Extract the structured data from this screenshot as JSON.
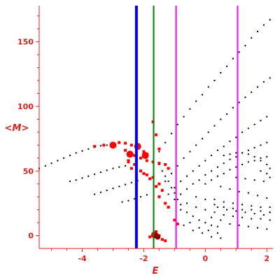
{
  "chart_data": {
    "type": "scatter",
    "xlabel": "E",
    "ylabel": "<M>",
    "xlim": [
      -5.4,
      2.2
    ],
    "ylim": [
      -10,
      178
    ],
    "xticks": [
      -4,
      -2,
      0,
      2
    ],
    "yticks": [
      0,
      50,
      100,
      150
    ],
    "grid": false,
    "legend": "none",
    "colors": {
      "axis": "#e0201a",
      "points": "#000000",
      "highlight": "#ff0000",
      "highlight_dark": "#8b0000",
      "blue_line": "#0000ff",
      "green_line": "#008000",
      "magenta_line": "#ff00ff"
    },
    "vertical_lines": [
      {
        "x": -2.24,
        "color": "#0000ff"
      },
      {
        "x": -1.68,
        "color": "#008000"
      },
      {
        "x": -0.95,
        "color": "#ff00ff"
      },
      {
        "x": 1.05,
        "color": "#ff00ff"
      }
    ],
    "series": [
      {
        "values": [
          [
            -5.4,
            52
          ],
          [
            -5.2,
            54
          ],
          [
            -5.0,
            56
          ],
          [
            -4.8,
            58
          ],
          [
            -4.6,
            60
          ],
          [
            -4.4,
            62
          ],
          [
            -4.2,
            64
          ],
          [
            -4.0,
            65.5
          ],
          [
            -3.8,
            67
          ],
          [
            -3.6,
            68.5
          ],
          [
            -3.4,
            69.5
          ],
          [
            -3.2,
            70
          ],
          [
            -4.4,
            42
          ],
          [
            -4.2,
            43
          ],
          [
            -4.0,
            44.5
          ],
          [
            -3.8,
            46
          ],
          [
            -3.6,
            47.5
          ],
          [
            -3.4,
            49
          ],
          [
            -3.2,
            50.5
          ],
          [
            -3.0,
            52
          ],
          [
            -2.8,
            53
          ],
          [
            -2.6,
            54
          ],
          [
            -3.6,
            32
          ],
          [
            -3.4,
            33.5
          ],
          [
            -3.2,
            35
          ],
          [
            -3.0,
            36.5
          ],
          [
            -2.8,
            38
          ],
          [
            -2.6,
            39.5
          ],
          [
            -2.4,
            41
          ],
          [
            -2.2,
            42.5
          ],
          [
            -2.7,
            26
          ],
          [
            -2.5,
            27
          ],
          [
            -2.3,
            28.5
          ],
          [
            -2.1,
            30
          ],
          [
            -1.9,
            31.5
          ],
          [
            -1.5,
            65
          ],
          [
            -1.3,
            72
          ],
          [
            -1.1,
            79
          ],
          [
            -0.9,
            86
          ],
          [
            -0.7,
            92
          ],
          [
            -0.5,
            98
          ],
          [
            -0.3,
            104
          ],
          [
            -0.1,
            109
          ],
          [
            0.1,
            115
          ],
          [
            0.3,
            120
          ],
          [
            0.5,
            126
          ],
          [
            0.7,
            131
          ],
          [
            0.9,
            137
          ],
          [
            1.1,
            142
          ],
          [
            1.3,
            147
          ],
          [
            1.5,
            153
          ],
          [
            1.7,
            158
          ],
          [
            1.9,
            163
          ],
          [
            2.1,
            167
          ],
          [
            -1.3,
            42
          ],
          [
            -1.1,
            48
          ],
          [
            -0.9,
            54
          ],
          [
            -0.7,
            60
          ],
          [
            -0.5,
            65
          ],
          [
            -0.3,
            70
          ],
          [
            -0.1,
            75
          ],
          [
            0.1,
            80
          ],
          [
            0.3,
            85
          ],
          [
            0.5,
            90
          ],
          [
            0.7,
            94
          ],
          [
            0.9,
            99
          ],
          [
            1.1,
            103
          ],
          [
            1.3,
            107
          ],
          [
            1.5,
            111
          ],
          [
            1.7,
            115
          ],
          [
            1.9,
            119
          ],
          [
            2.1,
            122
          ],
          [
            -1.2,
            32
          ],
          [
            -1.0,
            37
          ],
          [
            -0.8,
            42
          ],
          [
            -0.6,
            46
          ],
          [
            -0.4,
            50
          ],
          [
            -0.2,
            54
          ],
          [
            0.0,
            58
          ],
          [
            0.2,
            62
          ],
          [
            0.4,
            66
          ],
          [
            0.6,
            69
          ],
          [
            0.8,
            73
          ],
          [
            1.0,
            76
          ],
          [
            1.2,
            80
          ],
          [
            1.4,
            83
          ],
          [
            1.6,
            86
          ],
          [
            1.8,
            89
          ],
          [
            2.0,
            92
          ],
          [
            -1.0,
            28
          ],
          [
            -0.8,
            32
          ],
          [
            -0.6,
            36
          ],
          [
            -0.4,
            40
          ],
          [
            -0.2,
            43
          ],
          [
            0.0,
            47
          ],
          [
            0.2,
            50
          ],
          [
            0.4,
            53
          ],
          [
            0.6,
            56
          ],
          [
            0.8,
            59
          ],
          [
            1.0,
            61
          ],
          [
            1.2,
            64
          ],
          [
            1.4,
            66
          ],
          [
            1.6,
            68
          ],
          [
            1.8,
            70
          ],
          [
            2.0,
            72
          ],
          [
            0.0,
            40
          ],
          [
            0.2,
            43
          ],
          [
            0.4,
            46
          ],
          [
            0.6,
            48
          ],
          [
            0.8,
            51
          ],
          [
            1.0,
            53
          ],
          [
            1.2,
            55
          ],
          [
            1.4,
            57
          ],
          [
            1.6,
            58
          ],
          [
            1.8,
            60
          ],
          [
            2.0,
            61
          ],
          [
            0.6,
            62
          ],
          [
            0.8,
            63
          ],
          [
            1.0,
            64
          ],
          [
            1.2,
            64
          ],
          [
            1.4,
            63
          ],
          [
            1.6,
            61
          ],
          [
            1.8,
            58
          ],
          [
            2.0,
            55
          ],
          [
            -1.5,
            55
          ],
          [
            -1.4,
            50
          ],
          [
            -1.3,
            46
          ],
          [
            -1.2,
            42
          ],
          [
            -1.1,
            37
          ],
          [
            -1.0,
            33
          ],
          [
            -0.9,
            28
          ],
          [
            -0.8,
            24
          ],
          [
            0.5,
            38
          ],
          [
            0.8,
            36
          ],
          [
            1.1,
            34
          ],
          [
            1.4,
            33
          ],
          [
            1.7,
            31
          ],
          [
            2.0,
            29
          ],
          [
            -0.8,
            20
          ],
          [
            -0.6,
            18
          ],
          [
            -0.4,
            15
          ],
          [
            -0.2,
            12
          ],
          [
            0.0,
            10
          ],
          [
            0.2,
            8
          ],
          [
            0.4,
            7
          ],
          [
            -0.6,
            25
          ],
          [
            -0.3,
            22
          ],
          [
            0.0,
            20
          ],
          [
            0.3,
            18
          ],
          [
            0.6,
            16
          ],
          [
            0.9,
            15
          ],
          [
            1.2,
            14
          ],
          [
            1.5,
            13
          ],
          [
            1.8,
            13
          ],
          [
            2.1,
            12
          ],
          [
            -0.5,
            10
          ],
          [
            -0.2,
            6
          ],
          [
            0.1,
            4
          ],
          [
            0.4,
            2
          ],
          [
            0.3,
            28
          ],
          [
            0.6,
            26
          ],
          [
            0.9,
            25
          ],
          [
            1.2,
            24
          ],
          [
            1.5,
            23
          ],
          [
            1.8,
            22
          ],
          [
            2.1,
            22
          ],
          [
            0.2,
            14
          ],
          [
            0.5,
            12
          ],
          [
            0.8,
            9
          ],
          [
            1.1,
            8
          ],
          [
            1.4,
            7
          ],
          [
            1.7,
            6
          ],
          [
            2.0,
            5
          ],
          [
            -0.7,
            8
          ],
          [
            -0.4,
            4
          ],
          [
            -0.1,
            2
          ],
          [
            0.2,
            -1
          ],
          [
            0.5,
            -2
          ],
          [
            0.4,
            22
          ],
          [
            0.7,
            20
          ],
          [
            1.0,
            19
          ],
          [
            1.3,
            18
          ],
          [
            1.6,
            17
          ],
          [
            1.9,
            16
          ],
          [
            2.1,
            18
          ],
          [
            -0.3,
            30
          ],
          [
            0.0,
            28
          ],
          [
            0.3,
            24
          ],
          [
            0.6,
            22
          ],
          [
            0.9,
            21
          ],
          [
            1.2,
            20
          ],
          [
            1.5,
            20
          ],
          [
            1.8,
            19
          ],
          [
            2.1,
            18
          ],
          [
            1.0,
            45
          ],
          [
            1.3,
            44
          ],
          [
            1.6,
            43
          ],
          [
            1.9,
            42
          ],
          [
            2.1,
            45
          ],
          [
            1.8,
            50
          ],
          [
            2.0,
            48
          ],
          [
            2.1,
            52
          ]
        ]
      },
      {
        "values": [
          [
            -3.6,
            69
          ],
          [
            -3.3,
            70
          ],
          [
            -3.0,
            71
          ],
          [
            -2.8,
            72
          ],
          [
            -2.6,
            71.5
          ],
          [
            -2.4,
            70
          ],
          [
            -2.2,
            68
          ],
          [
            -2.0,
            65
          ],
          [
            -1.9,
            63
          ],
          [
            -2.6,
            66
          ],
          [
            -2.3,
            62
          ],
          [
            -2.1,
            60
          ],
          [
            -1.9,
            58
          ],
          [
            -1.7,
            57
          ],
          [
            -1.5,
            56
          ],
          [
            -1.3,
            55
          ],
          [
            -1.2,
            52
          ],
          [
            -2.5,
            57
          ],
          [
            -2.3,
            55
          ],
          [
            -2.1,
            50
          ],
          [
            -1.9,
            47
          ],
          [
            -1.7,
            45
          ],
          [
            -1.5,
            40
          ],
          [
            -1.4,
            35
          ],
          [
            -2.4,
            52
          ],
          [
            -2.0,
            48
          ],
          [
            -1.8,
            44
          ],
          [
            -1.6,
            38
          ],
          [
            -1.5,
            30
          ],
          [
            -1.3,
            25
          ],
          [
            -1.6,
            3
          ],
          [
            -1.7,
            1
          ],
          [
            -1.5,
            0
          ],
          [
            -1.8,
            -1
          ],
          [
            -1.4,
            -3
          ],
          [
            -1.3,
            -4
          ],
          [
            -1.7,
            88
          ],
          [
            -1.6,
            78
          ],
          [
            -1.5,
            67
          ],
          [
            -2.5,
            58
          ],
          [
            -1.2,
            22
          ],
          [
            -1.0,
            12
          ],
          [
            -0.9,
            9
          ]
        ]
      },
      {
        "values": [
          [
            -2.45,
            63
          ],
          [
            -1.95,
            62
          ],
          [
            -2.2,
            69
          ],
          [
            -3.0,
            70
          ],
          [
            -1.65,
            0.5
          ]
        ]
      },
      {
        "values": [
          [
            -1.6,
            0
          ],
          [
            -1.55,
            -1
          ]
        ]
      }
    ]
  }
}
